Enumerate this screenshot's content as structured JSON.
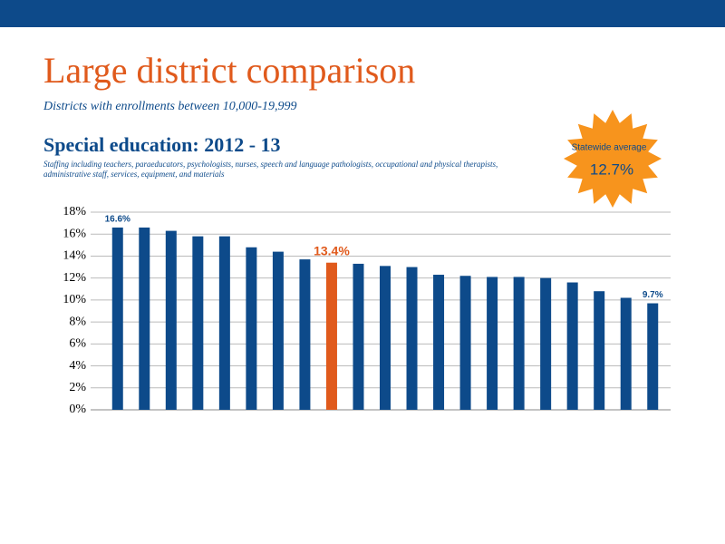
{
  "chart_data": {
    "type": "bar",
    "title": "Large district comparison",
    "subtitle": "Districts with enrollments between 10,000-19,999",
    "heading": "Special education: 2012 - 13",
    "description": "Staffing including teachers, paraeducators, psychologists, nurses, speech and language pathologists, occupational and physical therapists, administrative staff, services, equipment, and materials",
    "badge": {
      "label": "Statewide average",
      "value": "12.7%"
    },
    "categories": [
      null,
      null,
      null,
      null,
      null,
      null,
      null,
      null,
      null,
      null,
      null,
      null,
      null,
      null,
      null,
      null,
      null,
      null,
      null,
      null,
      null
    ],
    "values": [
      16.6,
      16.6,
      16.3,
      15.8,
      15.8,
      14.8,
      14.4,
      13.7,
      13.4,
      13.3,
      13.1,
      13.0,
      12.3,
      12.2,
      12.1,
      12.1,
      12.0,
      11.6,
      10.8,
      10.2,
      9.7
    ],
    "value_labels": [
      "16.6%",
      null,
      null,
      null,
      null,
      null,
      null,
      null,
      "13.4%",
      null,
      null,
      null,
      null,
      null,
      null,
      null,
      null,
      null,
      null,
      null,
      "9.7%"
    ],
    "colors": [
      "#0d4a8a",
      "#0d4a8a",
      "#0d4a8a",
      "#0d4a8a",
      "#0d4a8a",
      "#0d4a8a",
      "#0d4a8a",
      "#0d4a8a",
      "#e05a1c",
      "#0d4a8a",
      "#0d4a8a",
      "#0d4a8a",
      "#0d4a8a",
      "#0d4a8a",
      "#0d4a8a",
      "#0d4a8a",
      "#0d4a8a",
      "#0d4a8a",
      "#0d4a8a",
      "#0d4a8a",
      "#0d4a8a"
    ],
    "ylim": [
      0,
      18
    ],
    "yticks": [
      {
        "value": 0,
        "label": "0%"
      },
      {
        "value": 2,
        "label": "2%"
      },
      {
        "value": 4,
        "label": "4%"
      },
      {
        "value": 6,
        "label": "6%"
      },
      {
        "value": 8,
        "label": "8%"
      },
      {
        "value": 10,
        "label": "10%"
      },
      {
        "value": 12,
        "label": "12%"
      },
      {
        "value": 14,
        "label": "14%"
      },
      {
        "value": 16,
        "label": "16%"
      },
      {
        "value": 18,
        "label": "18%"
      }
    ],
    "grid": true
  }
}
